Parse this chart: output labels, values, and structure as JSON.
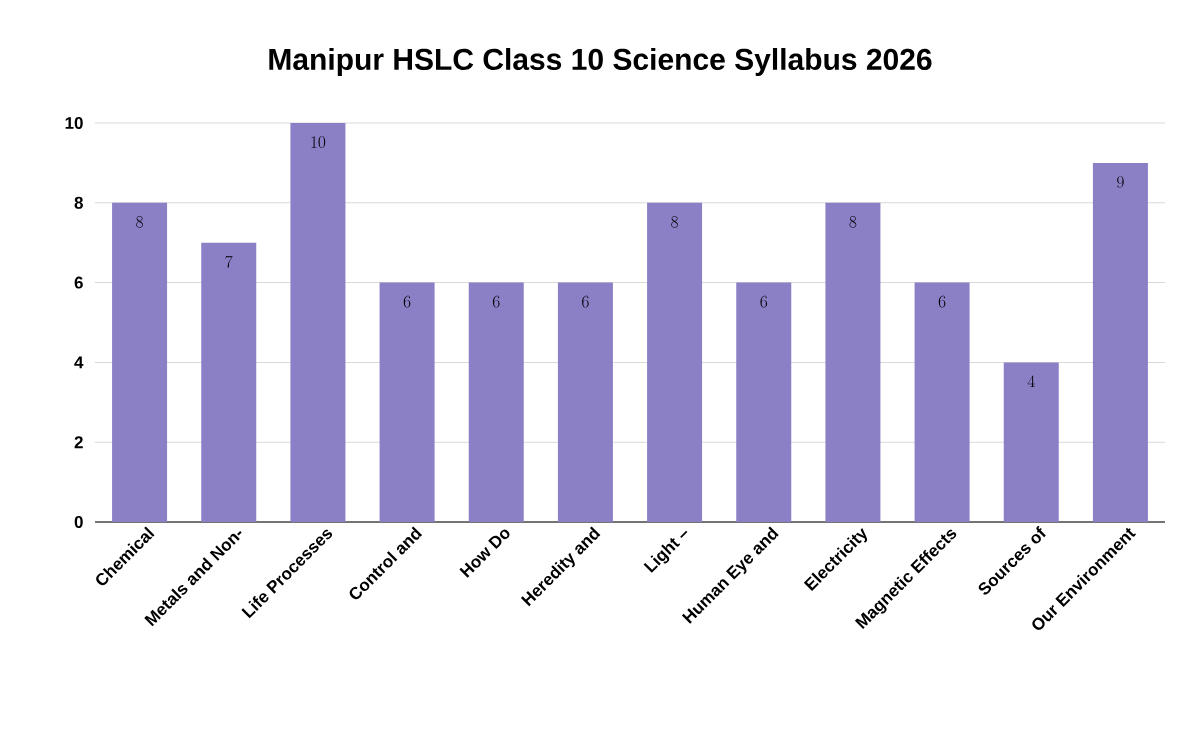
{
  "chart_data": {
    "type": "bar",
    "title": "Manipur HSLC Class 10 Science Syllabus 2026",
    "categories": [
      "Chemical",
      "Metals and Non-",
      "Life Processes",
      "Control and",
      "How Do",
      "Heredity and",
      "Light –",
      "Human Eye and",
      "Electricity",
      "Magnetic Effects",
      "Sources of",
      "Our Environment"
    ],
    "values": [
      8,
      7,
      10,
      6,
      6,
      6,
      8,
      6,
      8,
      6,
      4,
      9
    ],
    "color": "#8b7fc6",
    "ylim": [
      0,
      10
    ],
    "yticks": [
      0,
      2,
      4,
      6,
      8,
      10
    ],
    "grid": "y",
    "data_labels": true
  }
}
